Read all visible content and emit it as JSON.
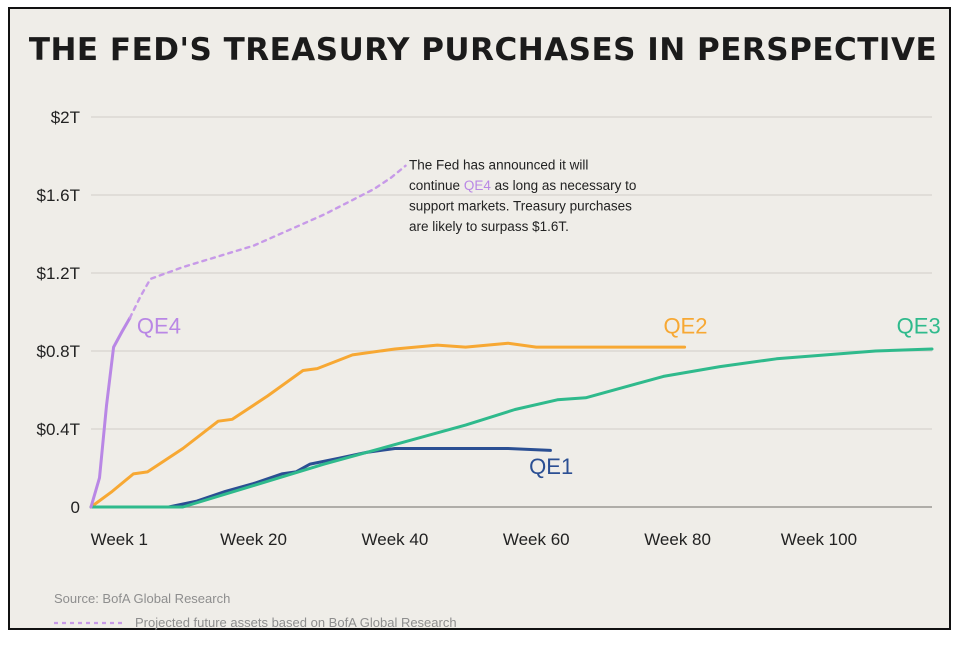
{
  "colors": {
    "background": "#efede8",
    "grid": "#d6d4cf",
    "QE1": "#2b4f93",
    "QE2": "#f7a833",
    "QE3": "#2fba8c",
    "QE4": "#b987e5",
    "projection": "#c79ae8"
  },
  "chart_data": {
    "type": "line",
    "title": "THE FED'S TREASURY PURCHASES IN PERSPECTIVE",
    "xlabel": "",
    "ylabel": "",
    "x_ticks": [
      "Week 1",
      "Week 20",
      "Week 40",
      "Week 60",
      "Week 80",
      "Week 100"
    ],
    "x_tick_values": [
      1,
      20,
      40,
      60,
      80,
      100
    ],
    "y_ticks": [
      "0",
      "$0.4T",
      "$0.8T",
      "$1.2T",
      "$1.6T",
      "$2T"
    ],
    "y_tick_values": [
      0,
      0.4,
      0.8,
      1.2,
      1.6,
      2.0
    ],
    "xlim": [
      -3,
      116
    ],
    "ylim": [
      0,
      2.0
    ],
    "grid": true,
    "series": [
      {
        "name": "QE1",
        "points": [
          [
            -3,
            0
          ],
          [
            8,
            0
          ],
          [
            12,
            0.03
          ],
          [
            16,
            0.08
          ],
          [
            20,
            0.12
          ],
          [
            24,
            0.17
          ],
          [
            26,
            0.18
          ],
          [
            28,
            0.22
          ],
          [
            32,
            0.25
          ],
          [
            36,
            0.28
          ],
          [
            40,
            0.3
          ],
          [
            44,
            0.3
          ],
          [
            50,
            0.3
          ],
          [
            56,
            0.3
          ],
          [
            62,
            0.29
          ]
        ]
      },
      {
        "name": "QE2",
        "points": [
          [
            -3,
            0
          ],
          [
            0,
            0.08
          ],
          [
            3,
            0.17
          ],
          [
            5,
            0.18
          ],
          [
            10,
            0.3
          ],
          [
            15,
            0.44
          ],
          [
            17,
            0.45
          ],
          [
            22,
            0.57
          ],
          [
            27,
            0.7
          ],
          [
            29,
            0.71
          ],
          [
            34,
            0.78
          ],
          [
            40,
            0.81
          ],
          [
            46,
            0.83
          ],
          [
            50,
            0.82
          ],
          [
            56,
            0.84
          ],
          [
            60,
            0.82
          ],
          [
            66,
            0.82
          ],
          [
            72,
            0.82
          ],
          [
            77,
            0.82
          ],
          [
            81,
            0.82
          ]
        ]
      },
      {
        "name": "QE3",
        "points": [
          [
            -3,
            0
          ],
          [
            10,
            0
          ],
          [
            20,
            0.11
          ],
          [
            30,
            0.22
          ],
          [
            40,
            0.32
          ],
          [
            50,
            0.42
          ],
          [
            57,
            0.5
          ],
          [
            63,
            0.55
          ],
          [
            67,
            0.56
          ],
          [
            72,
            0.61
          ],
          [
            78,
            0.67
          ],
          [
            86,
            0.72
          ],
          [
            94,
            0.76
          ],
          [
            101,
            0.78
          ],
          [
            108,
            0.8
          ],
          [
            116,
            0.81
          ]
        ]
      },
      {
        "name": "QE4",
        "points": [
          [
            -3,
            0
          ],
          [
            -1.8,
            0.15
          ],
          [
            -0.8,
            0.52
          ],
          [
            0.2,
            0.82
          ],
          [
            1.4,
            0.9
          ],
          [
            2.5,
            0.97
          ]
        ]
      },
      {
        "name": "QE4 projection",
        "dashed": true,
        "points": [
          [
            2.5,
            0.97
          ],
          [
            4,
            1.08
          ],
          [
            5.4,
            1.17
          ],
          [
            10,
            1.23
          ],
          [
            20,
            1.34
          ],
          [
            30,
            1.5
          ],
          [
            37,
            1.63
          ],
          [
            39.5,
            1.69
          ],
          [
            41.5,
            1.75
          ]
        ]
      }
    ],
    "series_labels": [
      {
        "name": "QE4",
        "x": 3.5,
        "y": 0.89
      },
      {
        "name": "QE2",
        "x": 78,
        "y": 0.89
      },
      {
        "name": "QE3",
        "x": 111,
        "y": 0.89
      },
      {
        "name": "QE1",
        "x": 59,
        "y": 0.17
      }
    ],
    "annotation": {
      "lines": [
        [
          {
            "t": "The Fed has announced it will"
          }
        ],
        [
          {
            "t": "continue "
          },
          {
            "t": "QE4",
            "highlight": true
          },
          {
            "t": " as long as necessary to"
          }
        ],
        [
          {
            "t": "support markets. Treasury purchases"
          }
        ],
        [
          {
            "t": "are likely to surpass $1.6T."
          }
        ]
      ],
      "x": 42,
      "y": 1.73
    }
  },
  "footer": {
    "source": "Source: BofA Global Research",
    "projection_note": "Projected future assets based on BofA Global Research"
  }
}
